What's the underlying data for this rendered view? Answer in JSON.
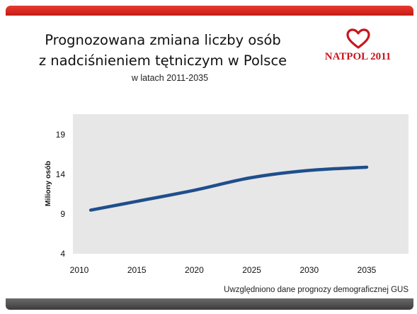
{
  "header": {
    "title_line1": "Prognozowana zmiana liczby osób",
    "title_line2": "z nadciśnieniem tętniczym w Polsce",
    "subtitle": "w latach 2011-2035"
  },
  "logo": {
    "text": "NATPOL 2011",
    "icon": "heart-icon",
    "color": "#c8161d"
  },
  "footer": {
    "note": "Uwzględniono dane prognozy demograficznej GUS"
  },
  "colors": {
    "top_bar": "#d4261e",
    "bottom_bar": "#4a4a4a",
    "plot_bg": "#e7e7e7",
    "line": "#1f4e8c"
  },
  "chart_data": {
    "type": "line",
    "title": "",
    "xlabel": "",
    "ylabel": "Miliony osób",
    "xlim": [
      2010,
      2035
    ],
    "ylim": [
      4,
      19
    ],
    "x_ticks": [
      2010,
      2015,
      2020,
      2025,
      2030,
      2035
    ],
    "y_ticks": [
      4,
      9,
      14,
      19
    ],
    "grid": false,
    "legend": "none",
    "series": [
      {
        "x": [
          2011,
          2015,
          2020,
          2025,
          2030,
          2035
        ],
        "values": [
          9.5,
          10.6,
          12.0,
          13.6,
          14.5,
          14.9
        ]
      }
    ]
  }
}
